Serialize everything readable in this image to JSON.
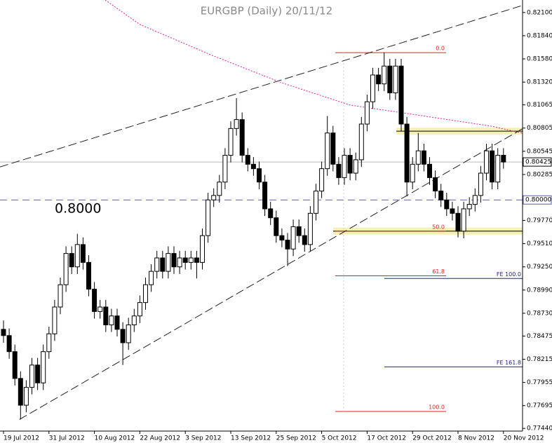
{
  "chart_data": {
    "type": "candlestick",
    "title": "EURGBP (Daily) 20/11/12",
    "categories": [
      "19 Jul 2012",
      null,
      null,
      null,
      null,
      null,
      null,
      null,
      "31 Jul 2012",
      null,
      null,
      null,
      null,
      null,
      null,
      null,
      "10 Aug 2012",
      null,
      null,
      null,
      null,
      null,
      null,
      null,
      "22 Aug 2012",
      null,
      null,
      null,
      null,
      null,
      null,
      null,
      "3 Sep 2012",
      null,
      null,
      null,
      null,
      null,
      null,
      null,
      "13 Sep 2012",
      null,
      null,
      null,
      null,
      null,
      null,
      null,
      "25 Sep 2012",
      null,
      null,
      null,
      null,
      null,
      null,
      null,
      "5 Oct 2012",
      null,
      null,
      null,
      null,
      null,
      null,
      null,
      "17 Oct 2012",
      null,
      null,
      null,
      null,
      null,
      null,
      null,
      "29 Oct 2012",
      null,
      null,
      null,
      null,
      null,
      null,
      null,
      "8 Nov 2012",
      null,
      null,
      null,
      null,
      null,
      null,
      null,
      "20 Nov 2012"
    ],
    "open": [
      0.7855,
      0.7848,
      0.783,
      0.78,
      0.777,
      0.779,
      0.7815,
      0.7795,
      0.783,
      0.785,
      0.788,
      0.7905,
      0.794,
      0.7925,
      0.795,
      0.793,
      0.79,
      0.7875,
      0.788,
      0.786,
      0.787,
      0.7855,
      0.784,
      0.786,
      0.787,
      0.7885,
      0.7905,
      0.792,
      0.7935,
      0.792,
      0.794,
      0.7925,
      0.7935,
      0.793,
      0.7935,
      0.793,
      0.796,
      0.8,
      0.8005,
      0.802,
      0.805,
      0.808,
      0.809,
      0.805,
      0.804,
      0.8035,
      0.802,
      0.799,
      0.798,
      0.796,
      0.7955,
      0.7945,
      0.797,
      0.796,
      0.795,
      0.7985,
      0.801,
      0.8035,
      0.8075,
      0.804,
      0.8025,
      0.805,
      0.803,
      0.8045,
      0.8085,
      0.811,
      0.814,
      0.813,
      0.815,
      0.812,
      0.815,
      0.8085,
      0.802,
      0.804,
      0.8055,
      0.804,
      0.8025,
      0.801,
      0.8,
      0.799,
      0.7985,
      0.7965,
      0.799,
      0.7995,
      0.8005,
      0.803,
      0.8055,
      0.802,
      0.805
    ],
    "high": [
      0.7865,
      0.7856,
      0.7838,
      0.7808,
      0.7798,
      0.7823,
      0.7823,
      0.7838,
      0.7858,
      0.7888,
      0.7913,
      0.7948,
      0.7948,
      0.7962,
      0.7958,
      0.7938,
      0.7908,
      0.7888,
      0.7888,
      0.7878,
      0.7878,
      0.7863,
      0.7868,
      0.7878,
      0.7893,
      0.7913,
      0.7928,
      0.7943,
      0.7943,
      0.7948,
      0.7948,
      0.7943,
      0.7943,
      0.7943,
      0.7943,
      0.7968,
      0.8008,
      0.8013,
      0.8028,
      0.8058,
      0.8088,
      0.8114,
      0.8098,
      0.8058,
      0.8048,
      0.8043,
      0.8028,
      0.7998,
      0.7988,
      0.7968,
      0.7963,
      0.7978,
      0.7978,
      0.7968,
      0.7993,
      0.8018,
      0.8043,
      0.8094,
      0.8083,
      0.8048,
      0.8058,
      0.8058,
      0.8053,
      0.8093,
      0.8118,
      0.8148,
      0.8148,
      0.8165,
      0.8158,
      0.8158,
      0.8158,
      0.8093,
      0.8048,
      0.8075,
      0.8063,
      0.8048,
      0.8033,
      0.8018,
      0.8008,
      0.7998,
      0.7993,
      0.7998,
      0.8003,
      0.8013,
      0.8038,
      0.8063,
      0.8063,
      0.8058,
      0.8058
    ],
    "low": [
      0.784,
      0.7822,
      0.7792,
      0.7754,
      0.7762,
      0.7782,
      0.7787,
      0.7787,
      0.7822,
      0.7842,
      0.7872,
      0.7897,
      0.7917,
      0.7917,
      0.7922,
      0.7892,
      0.7867,
      0.7867,
      0.7852,
      0.7852,
      0.7847,
      0.7815,
      0.7832,
      0.7852,
      0.7862,
      0.7877,
      0.7897,
      0.7912,
      0.7912,
      0.7912,
      0.7917,
      0.7917,
      0.7922,
      0.7922,
      0.7912,
      0.7922,
      0.7952,
      0.7992,
      0.7997,
      0.8012,
      0.8042,
      0.8072,
      0.8042,
      0.8032,
      0.8027,
      0.8012,
      0.7982,
      0.7972,
      0.7952,
      0.7947,
      0.7926,
      0.7937,
      0.7952,
      0.7942,
      0.7942,
      0.7977,
      0.8002,
      0.8027,
      0.8032,
      0.8017,
      0.8017,
      0.8022,
      0.8022,
      0.8037,
      0.8077,
      0.8102,
      0.8122,
      0.8122,
      0.8112,
      0.8112,
      0.8077,
      0.8004,
      0.8012,
      0.8032,
      0.8032,
      0.8017,
      0.8002,
      0.7992,
      0.7982,
      0.7977,
      0.7958,
      0.7957,
      0.7982,
      0.7987,
      0.7997,
      0.8022,
      0.8012,
      0.8012,
      0.8035
    ],
    "close": [
      0.7848,
      0.783,
      0.78,
      0.777,
      0.779,
      0.7815,
      0.7795,
      0.783,
      0.785,
      0.788,
      0.7905,
      0.794,
      0.7925,
      0.795,
      0.793,
      0.79,
      0.7875,
      0.788,
      0.786,
      0.787,
      0.7855,
      0.784,
      0.786,
      0.787,
      0.7885,
      0.7905,
      0.792,
      0.7935,
      0.792,
      0.794,
      0.7925,
      0.7935,
      0.793,
      0.7935,
      0.793,
      0.796,
      0.8,
      0.8005,
      0.802,
      0.805,
      0.808,
      0.809,
      0.805,
      0.804,
      0.8035,
      0.802,
      0.799,
      0.798,
      0.796,
      0.7955,
      0.7945,
      0.797,
      0.796,
      0.795,
      0.7985,
      0.801,
      0.8035,
      0.8075,
      0.804,
      0.8025,
      0.805,
      0.803,
      0.8045,
      0.8085,
      0.811,
      0.814,
      0.813,
      0.815,
      0.812,
      0.815,
      0.8085,
      0.802,
      0.804,
      0.8055,
      0.804,
      0.8025,
      0.801,
      0.8,
      0.799,
      0.7985,
      0.7965,
      0.799,
      0.7995,
      0.8005,
      0.803,
      0.8055,
      0.802,
      0.805,
      0.80425
    ],
    "ylim": [
      0.7741,
      0.8224
    ],
    "yticks": [
      {
        "value": 0.821,
        "label": "0.82100"
      },
      {
        "value": 0.8184,
        "label": "0.81840"
      },
      {
        "value": 0.8158,
        "label": "0.81580"
      },
      {
        "value": 0.8132,
        "label": "0.81320"
      },
      {
        "value": 0.81065,
        "label": "0.81065"
      },
      {
        "value": 0.80805,
        "label": "0.80805"
      },
      {
        "value": 0.80545,
        "label": "0.80545"
      },
      {
        "value": 0.80285,
        "label": "0.80285"
      },
      {
        "value": 0.7977,
        "label": "0.79770"
      },
      {
        "value": 0.7951,
        "label": "0.79510"
      },
      {
        "value": 0.7925,
        "label": "0.79250"
      },
      {
        "value": 0.7899,
        "label": "0.78990"
      },
      {
        "value": 0.7873,
        "label": "0.78730"
      },
      {
        "value": 0.78475,
        "label": "0.78475"
      },
      {
        "value": 0.78215,
        "label": "0.78215"
      },
      {
        "value": 0.77955,
        "label": "0.77955"
      },
      {
        "value": 0.77695,
        "label": "0.77695"
      },
      {
        "value": 0.7744,
        "label": "0.77440"
      }
    ],
    "current_price": {
      "value": 0.80425,
      "label": "0.80425"
    },
    "level": {
      "value": 0.8,
      "label": "0.80000"
    },
    "level_note": "0.8000",
    "fibonacci": [
      {
        "label": "0.0",
        "value": 0.8165
      },
      {
        "label": "50.0",
        "value": 0.7965
      },
      {
        "label": "61.8",
        "value": 0.7915
      },
      {
        "label": "100.0",
        "value": 0.7763
      }
    ],
    "expansion": [
      {
        "label": "FE 100.0",
        "value": 0.7912
      },
      {
        "label": "FE 161.8",
        "value": 0.7813
      }
    ],
    "bands": [
      0.8077,
      0.7965
    ],
    "trendlines": [
      {
        "x": [
          -0.6,
          91.4
        ],
        "values": [
          0.8037,
          0.8218
        ]
      },
      {
        "x": [
          2.8,
          91.4
        ],
        "values": [
          0.7754,
          0.808
        ]
      }
    ],
    "moving_average": {
      "x": [
        17.9,
        24,
        36.4,
        48.9,
        61,
        73.5,
        85.8,
        91.4
      ],
      "values": [
        0.8224,
        0.81966,
        0.81628,
        0.81314,
        0.81063,
        0.80945,
        0.80827,
        0.80748
      ]
    }
  }
}
